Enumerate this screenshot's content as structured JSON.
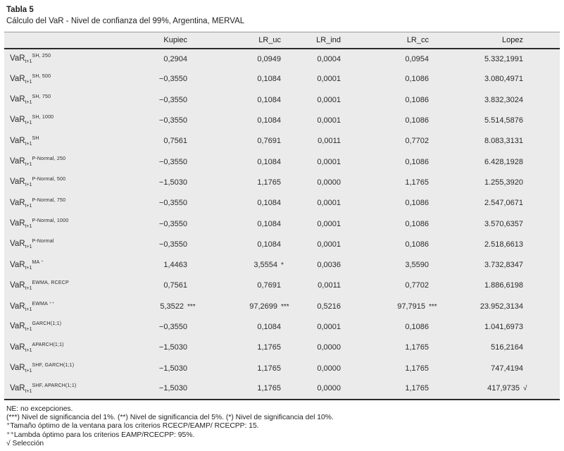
{
  "caption": {
    "title": "Tabla 5",
    "subtitle": "Cálculo del VaR - Nivel de confianza del 99%, Argentina, MERVAL"
  },
  "table": {
    "row_label_base": "VaR",
    "row_label_sub": "t+1",
    "columns": [
      "Kupiec",
      "LR_uc",
      "LR_ind",
      "LR_cc",
      "Lopez"
    ],
    "rows": [
      {
        "sup": "SH, 250",
        "values": [
          {
            "v": "0,2904",
            "m": ""
          },
          {
            "v": "0,0949",
            "m": ""
          },
          {
            "v": "0,0004",
            "m": ""
          },
          {
            "v": "0,0954",
            "m": ""
          },
          {
            "v": "5.332,1991",
            "m": ""
          }
        ]
      },
      {
        "sup": "SH, 500",
        "values": [
          {
            "v": "−0,3550",
            "m": ""
          },
          {
            "v": "0,1084",
            "m": ""
          },
          {
            "v": "0,0001",
            "m": ""
          },
          {
            "v": "0,1086",
            "m": ""
          },
          {
            "v": "3.080,4971",
            "m": ""
          }
        ]
      },
      {
        "sup": "SH, 750",
        "values": [
          {
            "v": "−0,3550",
            "m": ""
          },
          {
            "v": "0,1084",
            "m": ""
          },
          {
            "v": "0,0001",
            "m": ""
          },
          {
            "v": "0,1086",
            "m": ""
          },
          {
            "v": "3.832,3024",
            "m": ""
          }
        ]
      },
      {
        "sup": "SH, 1000",
        "values": [
          {
            "v": "−0,3550",
            "m": ""
          },
          {
            "v": "0,1084",
            "m": ""
          },
          {
            "v": "0,0001",
            "m": ""
          },
          {
            "v": "0,1086",
            "m": ""
          },
          {
            "v": "5.514,5876",
            "m": ""
          }
        ]
      },
      {
        "sup": "SH",
        "values": [
          {
            "v": "0,7561",
            "m": ""
          },
          {
            "v": "0,7691",
            "m": ""
          },
          {
            "v": "0,0011",
            "m": ""
          },
          {
            "v": "0,7702",
            "m": ""
          },
          {
            "v": "8.083,3131",
            "m": ""
          }
        ]
      },
      {
        "sup": "P-Normal, 250",
        "values": [
          {
            "v": "−0,3550",
            "m": ""
          },
          {
            "v": "0,1084",
            "m": ""
          },
          {
            "v": "0,0001",
            "m": ""
          },
          {
            "v": "0,1086",
            "m": ""
          },
          {
            "v": "6.428,1928",
            "m": ""
          }
        ]
      },
      {
        "sup": "P-Normal, 500",
        "values": [
          {
            "v": "−1,5030",
            "m": ""
          },
          {
            "v": "1,1765",
            "m": ""
          },
          {
            "v": "0,0000",
            "m": ""
          },
          {
            "v": "1,1765",
            "m": ""
          },
          {
            "v": "1.255,3920",
            "m": ""
          }
        ]
      },
      {
        "sup": "P-Normal, 750",
        "values": [
          {
            "v": "−0,3550",
            "m": ""
          },
          {
            "v": "0,1084",
            "m": ""
          },
          {
            "v": "0,0001",
            "m": ""
          },
          {
            "v": "0,1086",
            "m": ""
          },
          {
            "v": "2.547,0671",
            "m": ""
          }
        ]
      },
      {
        "sup": "P-Normal, 1000",
        "values": [
          {
            "v": "−0,3550",
            "m": ""
          },
          {
            "v": "0,1084",
            "m": ""
          },
          {
            "v": "0,0001",
            "m": ""
          },
          {
            "v": "0,1086",
            "m": ""
          },
          {
            "v": "3.570,6357",
            "m": ""
          }
        ]
      },
      {
        "sup": "P-Normal",
        "values": [
          {
            "v": "−0,3550",
            "m": ""
          },
          {
            "v": "0,1084",
            "m": ""
          },
          {
            "v": "0,0001",
            "m": ""
          },
          {
            "v": "0,1086",
            "m": ""
          },
          {
            "v": "2.518,6613",
            "m": ""
          }
        ]
      },
      {
        "sup": "MA ⁺",
        "values": [
          {
            "v": "1,4463",
            "m": ""
          },
          {
            "v": "3,5554",
            "m": "*"
          },
          {
            "v": "0,0036",
            "m": ""
          },
          {
            "v": "3,5590",
            "m": ""
          },
          {
            "v": "3.732,8347",
            "m": ""
          }
        ]
      },
      {
        "sup": "EWMA, RCECP",
        "values": [
          {
            "v": "0,7561",
            "m": ""
          },
          {
            "v": "0,7691",
            "m": ""
          },
          {
            "v": "0,0011",
            "m": ""
          },
          {
            "v": "0,7702",
            "m": ""
          },
          {
            "v": "1.886,6198",
            "m": ""
          }
        ]
      },
      {
        "sup": "EWMA ⁺⁺",
        "values": [
          {
            "v": "5,3522",
            "m": "***"
          },
          {
            "v": "97,2699",
            "m": "***"
          },
          {
            "v": "0,5216",
            "m": ""
          },
          {
            "v": "97,7915",
            "m": "***"
          },
          {
            "v": "23.952,3134",
            "m": ""
          }
        ]
      },
      {
        "sup": "GARCH(1;1)",
        "values": [
          {
            "v": "−0,3550",
            "m": ""
          },
          {
            "v": "0,1084",
            "m": ""
          },
          {
            "v": "0,0001",
            "m": ""
          },
          {
            "v": "0,1086",
            "m": ""
          },
          {
            "v": "1.041,6973",
            "m": ""
          }
        ]
      },
      {
        "sup": "APARCH(1;1)",
        "values": [
          {
            "v": "−1,5030",
            "m": ""
          },
          {
            "v": "1,1765",
            "m": ""
          },
          {
            "v": "0,0000",
            "m": ""
          },
          {
            "v": "1,1765",
            "m": ""
          },
          {
            "v": "516,2164",
            "m": ""
          }
        ]
      },
      {
        "sup": "SHF, GARCH(1;1)",
        "values": [
          {
            "v": "−1,5030",
            "m": ""
          },
          {
            "v": "1,1765",
            "m": ""
          },
          {
            "v": "0,0000",
            "m": ""
          },
          {
            "v": "1,1765",
            "m": ""
          },
          {
            "v": "747,4194",
            "m": ""
          }
        ]
      },
      {
        "sup": "SHF, APARCH(1;1)",
        "values": [
          {
            "v": "−1,5030",
            "m": ""
          },
          {
            "v": "1,1765",
            "m": ""
          },
          {
            "v": "0,0000",
            "m": ""
          },
          {
            "v": "1,1765",
            "m": ""
          },
          {
            "v": "417,9735",
            "m": "√"
          }
        ]
      }
    ]
  },
  "footnotes": [
    "NE: no excepciones.",
    "(***) Nivel de significancia del 1%. (**) Nivel de significancia del 5%. (*) Nivel de significancia del 10%.",
    "⁺Tamaño óptimo de la ventana para los criterios RCECP/EAMP/ RCECPP: 15.",
    "⁺⁺Lambda óptimo para los criterios EAMP/RCECPP: 95%.",
    "√ Selección"
  ],
  "colors": {
    "table_background": "#ebebec",
    "rule_dark": "#2a2a2a",
    "rule_light": "#9a9a9a",
    "text": "#1e1e1e"
  }
}
